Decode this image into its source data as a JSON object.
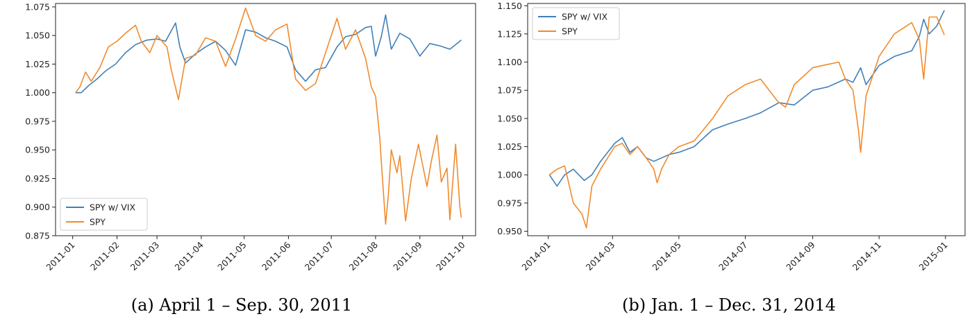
{
  "chart_data": [
    {
      "type": "line",
      "caption": "(a) April 1 – Sep. 30, 2011",
      "title": "",
      "xlabel": "",
      "ylabel": "",
      "xlim": [
        "2010-12-20",
        "2011-10-10"
      ],
      "ylim": [
        0.875,
        1.078
      ],
      "xticks": [
        "2011-01",
        "2011-02",
        "2011-03",
        "2011-04",
        "2011-05",
        "2011-06",
        "2011-07",
        "2011-08",
        "2011-09",
        "2011-10"
      ],
      "yticks": [
        "0.875",
        "0.900",
        "0.925",
        "0.950",
        "0.975",
        "1.000",
        "1.025",
        "1.050",
        "1.075"
      ],
      "legend": {
        "position": "lower-left",
        "entries": [
          "SPY w/ VIX",
          "SPY"
        ]
      },
      "series": [
        {
          "name": "SPY w/ VIX",
          "color": "#3f7fb8",
          "x": [
            "2011-01-03",
            "2011-01-07",
            "2011-01-12",
            "2011-01-18",
            "2011-01-24",
            "2011-01-31",
            "2011-02-07",
            "2011-02-14",
            "2011-02-22",
            "2011-03-01",
            "2011-03-07",
            "2011-03-14",
            "2011-03-17",
            "2011-03-21",
            "2011-03-28",
            "2011-04-04",
            "2011-04-11",
            "2011-04-18",
            "2011-04-25",
            "2011-05-02",
            "2011-05-09",
            "2011-05-16",
            "2011-05-23",
            "2011-05-31",
            "2011-06-06",
            "2011-06-13",
            "2011-06-20",
            "2011-06-27",
            "2011-07-05",
            "2011-07-11",
            "2011-07-18",
            "2011-07-25",
            "2011-07-29",
            "2011-08-01",
            "2011-08-05",
            "2011-08-08",
            "2011-08-12",
            "2011-08-18",
            "2011-08-25",
            "2011-09-01",
            "2011-09-08",
            "2011-09-15",
            "2011-09-22",
            "2011-09-30"
          ],
          "values": [
            1.0,
            1.0,
            1.006,
            1.012,
            1.019,
            1.025,
            1.035,
            1.042,
            1.046,
            1.047,
            1.045,
            1.061,
            1.04,
            1.026,
            1.034,
            1.04,
            1.045,
            1.037,
            1.024,
            1.055,
            1.053,
            1.048,
            1.045,
            1.04,
            1.02,
            1.01,
            1.02,
            1.022,
            1.04,
            1.049,
            1.051,
            1.057,
            1.058,
            1.032,
            1.049,
            1.068,
            1.038,
            1.052,
            1.047,
            1.032,
            1.043,
            1.041,
            1.038,
            1.046
          ]
        },
        {
          "name": "SPY",
          "color": "#f08a2c",
          "x": [
            "2011-01-03",
            "2011-01-06",
            "2011-01-10",
            "2011-01-14",
            "2011-01-20",
            "2011-01-26",
            "2011-02-01",
            "2011-02-07",
            "2011-02-14",
            "2011-02-18",
            "2011-02-24",
            "2011-03-01",
            "2011-03-08",
            "2011-03-11",
            "2011-03-16",
            "2011-03-21",
            "2011-03-28",
            "2011-04-04",
            "2011-04-11",
            "2011-04-18",
            "2011-04-25",
            "2011-05-02",
            "2011-05-09",
            "2011-05-16",
            "2011-05-23",
            "2011-05-31",
            "2011-06-06",
            "2011-06-13",
            "2011-06-20",
            "2011-06-27",
            "2011-07-05",
            "2011-07-11",
            "2011-07-18",
            "2011-07-25",
            "2011-07-29",
            "2011-08-01",
            "2011-08-04",
            "2011-08-05",
            "2011-08-08",
            "2011-08-10",
            "2011-08-12",
            "2011-08-16",
            "2011-08-18",
            "2011-08-22",
            "2011-08-26",
            "2011-08-31",
            "2011-09-06",
            "2011-09-09",
            "2011-09-13",
            "2011-09-16",
            "2011-09-20",
            "2011-09-22",
            "2011-09-26",
            "2011-09-29",
            "2011-09-30"
          ],
          "values": [
            1.0,
            1.005,
            1.018,
            1.01,
            1.022,
            1.04,
            1.045,
            1.052,
            1.059,
            1.045,
            1.035,
            1.05,
            1.04,
            1.02,
            0.994,
            1.03,
            1.033,
            1.048,
            1.045,
            1.023,
            1.047,
            1.074,
            1.05,
            1.045,
            1.055,
            1.06,
            1.012,
            1.002,
            1.008,
            1.035,
            1.065,
            1.038,
            1.055,
            1.03,
            1.005,
            0.997,
            0.96,
            0.94,
            0.885,
            0.912,
            0.95,
            0.93,
            0.945,
            0.888,
            0.925,
            0.955,
            0.918,
            0.94,
            0.963,
            0.922,
            0.934,
            0.889,
            0.955,
            0.9,
            0.891
          ]
        }
      ]
    },
    {
      "type": "line",
      "caption": "(b) Jan. 1 – Dec. 31, 2014",
      "title": "",
      "xlabel": "",
      "ylabel": "",
      "xlim": [
        "2013-12-13",
        "2015-01-19"
      ],
      "ylim": [
        0.946,
        1.152
      ],
      "xticks": [
        "2014-01",
        "2014-03",
        "2014-05",
        "2014-07",
        "2014-09",
        "2014-11",
        "2015-01"
      ],
      "yticks": [
        "0.950",
        "0.975",
        "1.000",
        "1.025",
        "1.050",
        "1.075",
        "1.100",
        "1.125",
        "1.150"
      ],
      "legend": {
        "position": "upper-left",
        "entries": [
          "SPY w/ VIX",
          "SPY"
        ]
      },
      "series": [
        {
          "name": "SPY w/ VIX",
          "color": "#3f7fb8",
          "x": [
            "2014-01-02",
            "2014-01-09",
            "2014-01-16",
            "2014-01-24",
            "2014-02-03",
            "2014-02-10",
            "2014-02-18",
            "2014-03-03",
            "2014-03-10",
            "2014-03-17",
            "2014-03-24",
            "2014-04-01",
            "2014-04-08",
            "2014-04-15",
            "2014-04-22",
            "2014-05-01",
            "2014-05-15",
            "2014-06-01",
            "2014-06-15",
            "2014-07-01",
            "2014-07-15",
            "2014-08-01",
            "2014-08-15",
            "2014-09-01",
            "2014-09-15",
            "2014-10-01",
            "2014-10-08",
            "2014-10-15",
            "2014-10-20",
            "2014-11-01",
            "2014-11-15",
            "2014-12-01",
            "2014-12-08",
            "2014-12-12",
            "2014-12-17",
            "2014-12-24",
            "2014-12-31"
          ],
          "values": [
            1.0,
            0.99,
            1.0,
            1.005,
            0.995,
            1.0,
            1.012,
            1.028,
            1.033,
            1.02,
            1.025,
            1.015,
            1.012,
            1.015,
            1.018,
            1.02,
            1.025,
            1.04,
            1.045,
            1.05,
            1.055,
            1.064,
            1.062,
            1.075,
            1.078,
            1.085,
            1.082,
            1.095,
            1.08,
            1.097,
            1.105,
            1.11,
            1.123,
            1.138,
            1.125,
            1.132,
            1.146
          ]
        },
        {
          "name": "SPY",
          "color": "#f08a2c",
          "x": [
            "2014-01-02",
            "2014-01-09",
            "2014-01-16",
            "2014-01-24",
            "2014-02-01",
            "2014-02-05",
            "2014-02-10",
            "2014-02-18",
            "2014-03-03",
            "2014-03-10",
            "2014-03-17",
            "2014-03-24",
            "2014-04-01",
            "2014-04-08",
            "2014-04-11",
            "2014-04-15",
            "2014-04-22",
            "2014-05-01",
            "2014-05-15",
            "2014-06-01",
            "2014-06-15",
            "2014-07-01",
            "2014-07-15",
            "2014-07-31",
            "2014-08-07",
            "2014-08-15",
            "2014-09-01",
            "2014-09-15",
            "2014-09-25",
            "2014-10-01",
            "2014-10-08",
            "2014-10-13",
            "2014-10-15",
            "2014-10-20",
            "2014-11-01",
            "2014-11-15",
            "2014-12-01",
            "2014-12-08",
            "2014-12-12",
            "2014-12-17",
            "2014-12-24",
            "2014-12-31"
          ],
          "values": [
            1.0,
            1.005,
            1.008,
            0.975,
            0.965,
            0.953,
            0.99,
            1.005,
            1.025,
            1.028,
            1.018,
            1.025,
            1.015,
            1.005,
            0.993,
            1.005,
            1.018,
            1.025,
            1.03,
            1.05,
            1.07,
            1.08,
            1.085,
            1.065,
            1.06,
            1.08,
            1.095,
            1.098,
            1.1,
            1.085,
            1.075,
            1.04,
            1.02,
            1.07,
            1.105,
            1.125,
            1.135,
            1.12,
            1.085,
            1.14,
            1.14,
            1.124
          ]
        }
      ]
    }
  ]
}
